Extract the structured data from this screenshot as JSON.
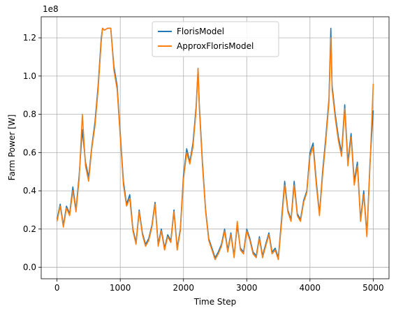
{
  "chart_data": {
    "type": "line",
    "xlabel": "Time Step",
    "ylabel": "Farm Power [W]",
    "y_offset_text": "1e8",
    "xlim": [
      -250,
      5250
    ],
    "ylim": [
      -0.06,
      1.31
    ],
    "x_ticks": [
      0,
      1000,
      2000,
      3000,
      4000,
      5000
    ],
    "x_tick_labels": [
      "0",
      "1000",
      "2000",
      "3000",
      "4000",
      "5000"
    ],
    "y_ticks": [
      0.0,
      0.2,
      0.4,
      0.6,
      0.8,
      1.0,
      1.2
    ],
    "y_tick_labels": [
      "0.0",
      "0.2",
      "0.4",
      "0.6",
      "0.8",
      "1.0",
      "1.2"
    ],
    "grid": true,
    "legend_position": "top-center",
    "series": [
      {
        "name": "FlorisModel",
        "color": "#1f77b4",
        "x": [
          0,
          50,
          100,
          150,
          200,
          250,
          300,
          350,
          400,
          450,
          500,
          550,
          600,
          650,
          700,
          720,
          750,
          800,
          850,
          900,
          950,
          1000,
          1050,
          1100,
          1150,
          1200,
          1250,
          1300,
          1350,
          1400,
          1450,
          1500,
          1550,
          1600,
          1650,
          1700,
          1750,
          1800,
          1850,
          1900,
          1950,
          2000,
          2050,
          2100,
          2150,
          2200,
          2230,
          2250,
          2300,
          2350,
          2400,
          2450,
          2500,
          2550,
          2600,
          2650,
          2700,
          2750,
          2800,
          2850,
          2900,
          2950,
          3000,
          3050,
          3100,
          3150,
          3200,
          3250,
          3300,
          3350,
          3400,
          3450,
          3500,
          3550,
          3600,
          3650,
          3700,
          3750,
          3800,
          3850,
          3900,
          3950,
          4000,
          4050,
          4100,
          4150,
          4200,
          4250,
          4300,
          4330,
          4350,
          4400,
          4450,
          4500,
          4550,
          4600,
          4650,
          4700,
          4750,
          4800,
          4850,
          4900,
          4950,
          5000
        ],
        "values": [
          0.25,
          0.33,
          0.22,
          0.32,
          0.28,
          0.42,
          0.3,
          0.48,
          0.72,
          0.55,
          0.47,
          0.63,
          0.76,
          0.95,
          1.2,
          1.25,
          1.24,
          1.25,
          1.25,
          1.05,
          0.95,
          0.7,
          0.45,
          0.33,
          0.38,
          0.2,
          0.13,
          0.3,
          0.18,
          0.12,
          0.15,
          0.22,
          0.34,
          0.12,
          0.2,
          0.1,
          0.17,
          0.14,
          0.3,
          0.1,
          0.2,
          0.48,
          0.62,
          0.55,
          0.65,
          0.84,
          1.04,
          0.85,
          0.55,
          0.3,
          0.15,
          0.1,
          0.05,
          0.08,
          0.12,
          0.2,
          0.09,
          0.18,
          0.06,
          0.22,
          0.1,
          0.08,
          0.2,
          0.15,
          0.08,
          0.06,
          0.16,
          0.06,
          0.12,
          0.18,
          0.08,
          0.1,
          0.05,
          0.25,
          0.45,
          0.3,
          0.25,
          0.45,
          0.28,
          0.25,
          0.35,
          0.4,
          0.6,
          0.65,
          0.45,
          0.28,
          0.5,
          0.68,
          0.88,
          1.25,
          0.95,
          0.8,
          0.68,
          0.6,
          0.85,
          0.55,
          0.7,
          0.45,
          0.55,
          0.25,
          0.4,
          0.17,
          0.55,
          0.82
        ]
      },
      {
        "name": "ApproxFlorisModel",
        "color": "#ff7f0e",
        "x": [
          0,
          50,
          100,
          150,
          200,
          250,
          300,
          350,
          400,
          450,
          500,
          550,
          600,
          650,
          700,
          720,
          750,
          800,
          850,
          900,
          950,
          1000,
          1050,
          1100,
          1150,
          1200,
          1250,
          1300,
          1350,
          1400,
          1450,
          1500,
          1550,
          1600,
          1650,
          1700,
          1750,
          1800,
          1850,
          1900,
          1950,
          2000,
          2050,
          2100,
          2150,
          2200,
          2230,
          2250,
          2300,
          2350,
          2400,
          2450,
          2500,
          2550,
          2600,
          2650,
          2700,
          2750,
          2800,
          2850,
          2900,
          2950,
          3000,
          3050,
          3100,
          3150,
          3200,
          3250,
          3300,
          3350,
          3400,
          3450,
          3500,
          3550,
          3600,
          3650,
          3700,
          3750,
          3800,
          3850,
          3900,
          3950,
          4000,
          4050,
          4100,
          4150,
          4200,
          4250,
          4300,
          4330,
          4350,
          4400,
          4450,
          4500,
          4550,
          4600,
          4650,
          4700,
          4750,
          4800,
          4850,
          4900,
          4950,
          5000
        ],
        "values": [
          0.24,
          0.32,
          0.21,
          0.31,
          0.27,
          0.4,
          0.29,
          0.46,
          0.8,
          0.53,
          0.45,
          0.62,
          0.74,
          0.93,
          1.18,
          1.25,
          1.24,
          1.25,
          1.25,
          1.03,
          0.93,
          0.68,
          0.43,
          0.32,
          0.36,
          0.19,
          0.12,
          0.29,
          0.17,
          0.11,
          0.14,
          0.21,
          0.33,
          0.11,
          0.19,
          0.09,
          0.16,
          0.13,
          0.29,
          0.09,
          0.19,
          0.46,
          0.6,
          0.54,
          0.63,
          0.82,
          1.04,
          0.83,
          0.53,
          0.29,
          0.14,
          0.09,
          0.04,
          0.07,
          0.11,
          0.19,
          0.08,
          0.17,
          0.05,
          0.24,
          0.09,
          0.07,
          0.19,
          0.14,
          0.07,
          0.05,
          0.15,
          0.05,
          0.11,
          0.17,
          0.07,
          0.09,
          0.04,
          0.23,
          0.43,
          0.29,
          0.24,
          0.43,
          0.27,
          0.24,
          0.34,
          0.39,
          0.58,
          0.63,
          0.43,
          0.27,
          0.48,
          0.66,
          0.86,
          1.2,
          0.93,
          0.78,
          0.66,
          0.58,
          0.83,
          0.53,
          0.68,
          0.43,
          0.53,
          0.24,
          0.38,
          0.16,
          0.53,
          0.96
        ]
      }
    ]
  }
}
